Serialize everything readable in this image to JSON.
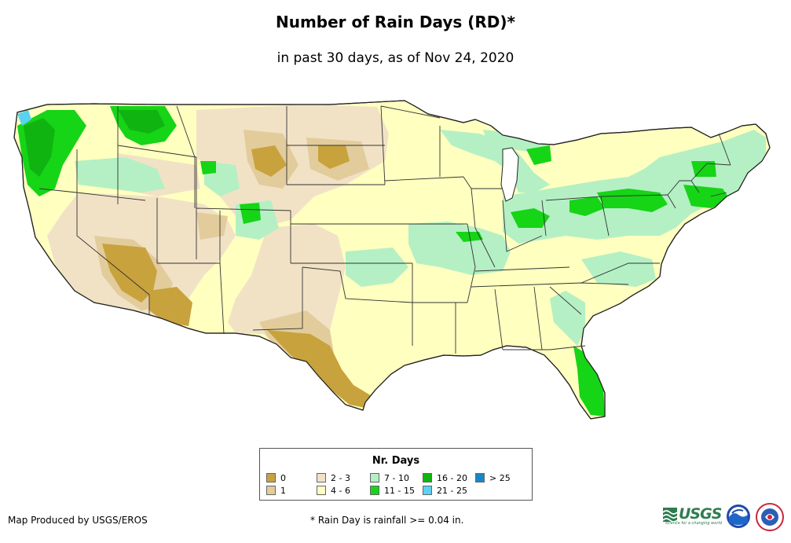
{
  "title": "Number of Rain Days (RD)*",
  "subtitle": "in past 30 days, as of Nov 24, 2020",
  "legend": {
    "title": "Nr. Days",
    "items": [
      {
        "label": "0",
        "color": "#c8a23c"
      },
      {
        "label": "1",
        "color": "#e2cc9c"
      },
      {
        "label": "2 - 3",
        "color": "#f1e2c6"
      },
      {
        "label": "4 - 6",
        "color": "#ffffc0"
      },
      {
        "label": "7 - 10",
        "color": "#b4f0c4"
      },
      {
        "label": "11 - 15",
        "color": "#16d416"
      },
      {
        "label": "16 - 20",
        "color": "#10b410"
      },
      {
        "label": "21 - 25",
        "color": "#5ad2f2"
      },
      {
        "label": "> 25",
        "color": "#1688c8"
      }
    ]
  },
  "credit": "Map Produced by USGS/EROS",
  "footnote": "* Rain Day is rainfall >= 0.04 in.",
  "logos": {
    "usgs": "USGS",
    "usgs_tagline": "science for a changing world",
    "noaa": "noaa",
    "nws": "NATIONAL WEATHER SERVICE"
  }
}
